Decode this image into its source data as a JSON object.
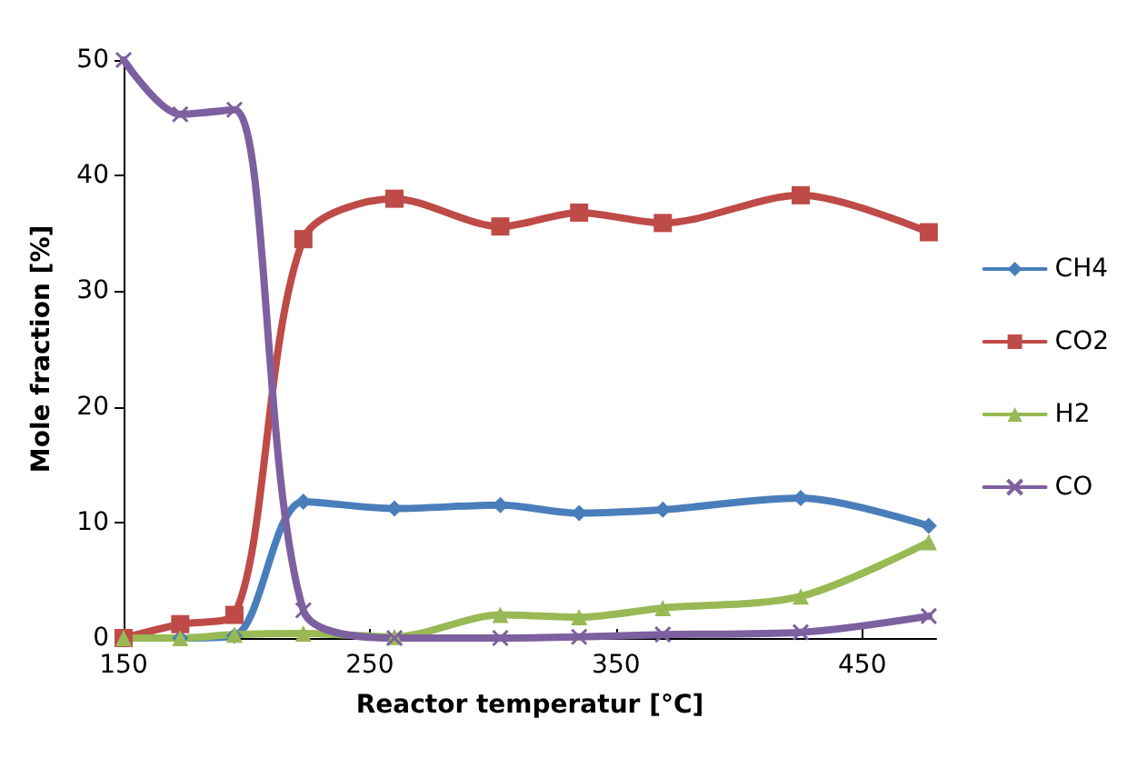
{
  "chart_data": {
    "type": "line",
    "xlabel": "Reactor temperatur [°C]",
    "ylabel": "Mole fraction [%]",
    "x": [
      150,
      173,
      195,
      223,
      260,
      303,
      335,
      369,
      425,
      477
    ],
    "xlim": [
      150,
      480
    ],
    "xticks": [
      150,
      250,
      350,
      450
    ],
    "ylim": [
      0,
      50
    ],
    "yticks": [
      0,
      10,
      20,
      30,
      40,
      50
    ],
    "grid": false,
    "legend": "right",
    "series": [
      {
        "name": "CH4",
        "color": "#4a7ebb",
        "marker": "diamond",
        "values": [
          0,
          0,
          0.2,
          11.8,
          11.2,
          11.5,
          10.8,
          11.1,
          12.1,
          9.7
        ]
      },
      {
        "name": "CO2",
        "color": "#be4b48",
        "marker": "square",
        "values": [
          0,
          1.2,
          2,
          34.5,
          38,
          35.6,
          36.8,
          35.9,
          38.3,
          35.1
        ]
      },
      {
        "name": "H2",
        "color": "#98b954",
        "marker": "triangle",
        "values": [
          0,
          0,
          0.3,
          0.4,
          0.1,
          2,
          1.8,
          2.6,
          3.6,
          8.3
        ]
      },
      {
        "name": "CO",
        "color": "#7d60a0",
        "marker": "cross",
        "values": [
          50,
          45.3,
          45.7,
          2.4,
          0,
          0,
          0.1,
          0.3,
          0.5,
          1.9
        ]
      }
    ]
  }
}
